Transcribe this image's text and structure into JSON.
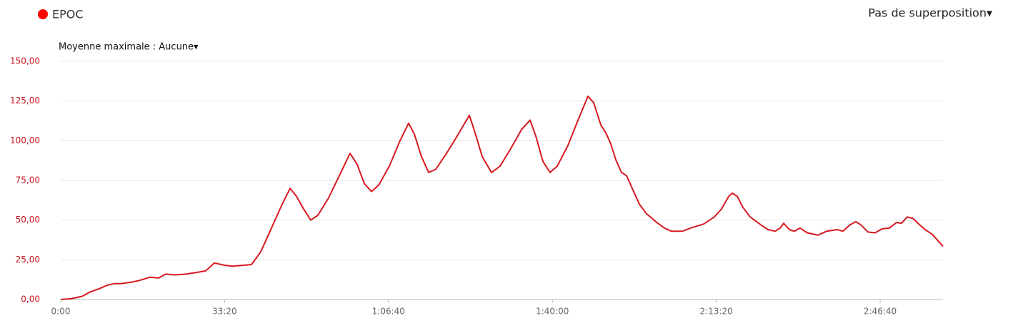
{
  "chart_data": {
    "type": "line",
    "overlay_menu": "Pas de superposition▾",
    "average_menu": "Moyenne maximale : Aucune▾",
    "x": [
      0,
      131,
      262,
      349,
      480,
      567,
      654,
      741,
      872,
      959,
      1090,
      1194,
      1282,
      1395,
      1526,
      1656,
      1770,
      1874,
      2005,
      2092,
      2223,
      2328,
      2441,
      2572,
      2703,
      2799,
      2877,
      2964,
      3051,
      3138,
      3269,
      3400,
      3531,
      3618,
      3705,
      3792,
      3880,
      4010,
      4141,
      4246,
      4316,
      4403,
      4490,
      4577,
      4708,
      4839,
      4987,
      5057,
      5144,
      5257,
      5362,
      5492,
      5623,
      5728,
      5798,
      5885,
      5972,
      6059,
      6190,
      6321,
      6434,
      6504,
      6591,
      6652,
      6713,
      6774,
      6844,
      6905,
      6975,
      7062,
      7149,
      7262,
      7367,
      7454,
      7585,
      7716,
      7846,
      7977,
      8064,
      8152,
      8195,
      8256,
      8326,
      8413,
      8544,
      8631,
      8718,
      8779,
      8823,
      8892,
      8953,
      9023,
      9110,
      9241,
      9346,
      9415,
      9477,
      9546,
      9633,
      9703,
      9764,
      9851,
      9938,
      10025,
      10112,
      10200,
      10261,
      10331,
      10401,
      10462,
      10549,
      10636,
      10706,
      10767
    ],
    "series": [
      {
        "name": "EPOC",
        "color": "#d7191f",
        "legend_color": "#ff0000",
        "values": [
          0,
          0.5,
          2,
          4.5,
          7,
          9,
          10,
          10,
          11,
          12,
          14,
          13.5,
          16,
          15.5,
          16,
          17,
          18,
          23,
          21.5,
          21,
          21.5,
          22,
          30,
          45,
          60,
          70,
          65,
          57,
          50,
          53,
          64,
          78,
          92,
          85,
          73,
          68,
          72,
          84,
          100,
          111,
          104,
          90,
          80,
          82,
          92,
          103,
          116,
          105,
          90,
          80,
          84,
          95,
          107,
          113,
          103,
          87,
          80,
          84,
          97,
          114,
          128,
          124,
          110,
          105,
          98,
          88,
          80,
          78,
          70,
          60,
          54,
          49,
          45,
          43,
          43,
          45.5,
          47.5,
          52,
          57,
          65,
          67,
          65,
          58,
          52,
          47,
          44,
          43,
          45,
          48,
          44,
          43,
          45,
          42,
          40.5,
          43,
          43.5,
          44,
          43,
          47,
          49,
          47,
          42.5,
          42,
          44.5,
          45,
          48.5,
          48,
          52,
          51,
          48,
          44,
          41,
          37,
          33.5
        ]
      }
    ],
    "xlim": [
      0,
      10767
    ],
    "ylim": [
      0,
      150
    ],
    "xticks": [
      {
        "value": 0,
        "label": "0:00"
      },
      {
        "value": 2000,
        "label": "33:20"
      },
      {
        "value": 4000,
        "label": "1:06:40"
      },
      {
        "value": 6000,
        "label": "1:40:00"
      },
      {
        "value": 8000,
        "label": "2:13:20"
      },
      {
        "value": 10000,
        "label": "2:46:40"
      }
    ],
    "yticks": [
      {
        "value": 0,
        "label": "0,00"
      },
      {
        "value": 25,
        "label": "25,00"
      },
      {
        "value": 50,
        "label": "50,00"
      },
      {
        "value": 75,
        "label": "75,00"
      },
      {
        "value": 100,
        "label": "100,00"
      },
      {
        "value": 125,
        "label": "125,00"
      },
      {
        "value": 150,
        "label": "150,00"
      }
    ],
    "grid": true
  }
}
